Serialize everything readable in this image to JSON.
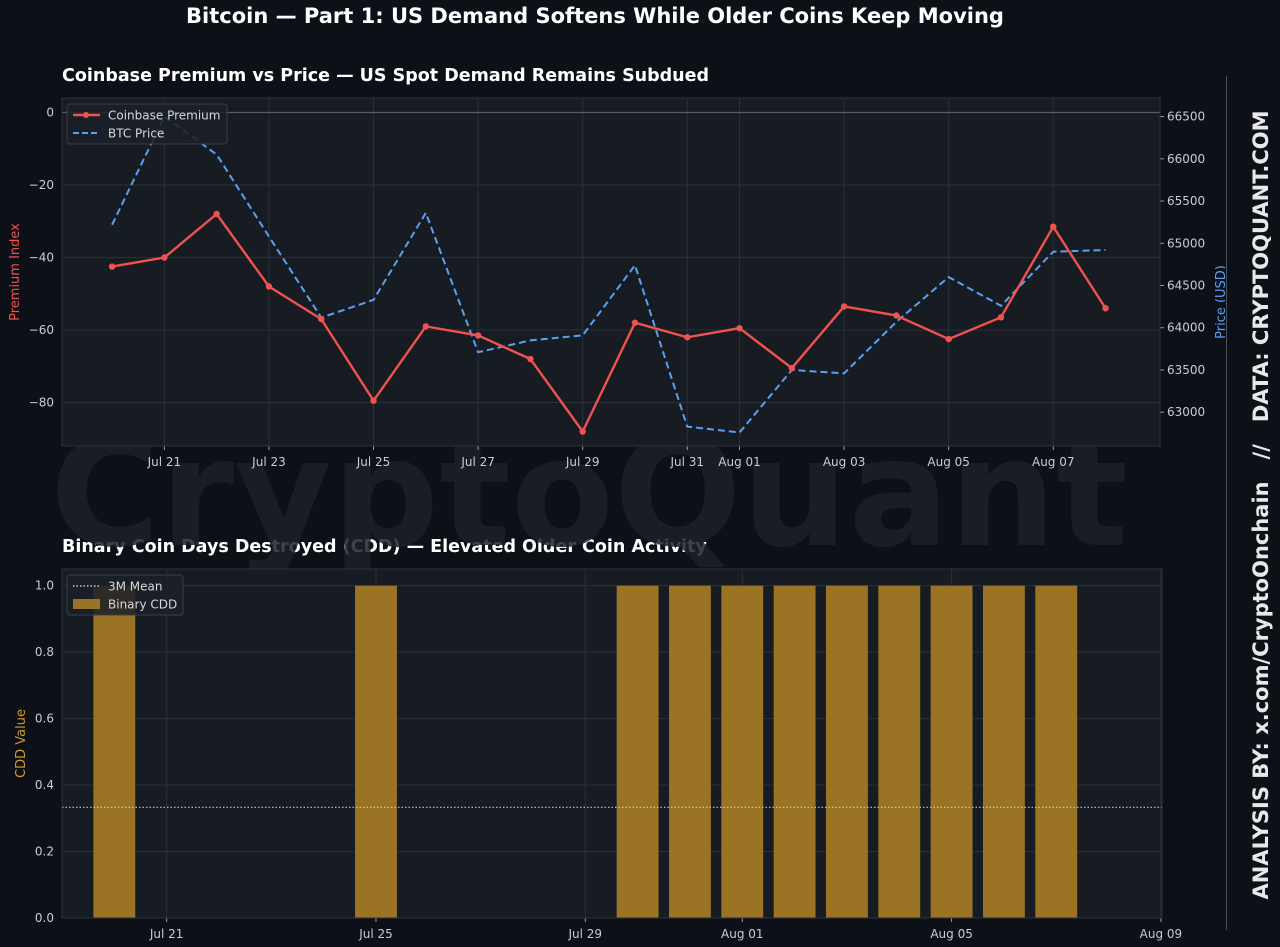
{
  "page": {
    "title": "Bitcoin — Part 1: US Demand Softens While Older Coins Keep Moving",
    "watermark": "CryptoQuant",
    "side_credit": "ANALYSIS BY: x.com/CryptoOnchain   //   DATA: CRYPTOQUANT.COM"
  },
  "colors": {
    "background": "#0d1017",
    "panel": "#171b22",
    "premium": "#f0524f",
    "price": "#5aa0f2",
    "cdd": "#9a7424",
    "mean": "#c8c8c8"
  },
  "chart_data": [
    {
      "type": "line",
      "title": "Coinbase Premium vs Price — US Spot Demand Remains Subdued",
      "x": [
        "2024-07-20",
        "2024-07-21",
        "2024-07-22",
        "2024-07-23",
        "2024-07-24",
        "2024-07-25",
        "2024-07-26",
        "2024-07-27",
        "2024-07-28",
        "2024-07-29",
        "2024-07-30",
        "2024-07-31",
        "2024-08-01",
        "2024-08-02",
        "2024-08-03",
        "2024-08-04",
        "2024-08-05",
        "2024-08-06",
        "2024-08-07",
        "2024-08-08"
      ],
      "x_ticks": [
        "Jul 21",
        "Jul 23",
        "Jul 25",
        "Jul 27",
        "Jul 29",
        "Jul 31",
        "Aug 01",
        "Aug 03",
        "Aug 05",
        "Aug 07"
      ],
      "x_tick_dates": [
        "2024-07-21",
        "2024-07-23",
        "2024-07-25",
        "2024-07-27",
        "2024-07-29",
        "2024-07-31",
        "2024-08-01",
        "2024-08-03",
        "2024-08-05",
        "2024-08-07"
      ],
      "xlim": [
        "2024-07-19T01:00",
        "2024-08-09T01:00"
      ],
      "ylabel": "Premium Index",
      "ylabel_right": "Price (USD)",
      "ylim": [
        -92,
        4
      ],
      "y_ticks": [
        0,
        -20,
        -40,
        -60,
        -80
      ],
      "ylim_right": [
        62600,
        66720
      ],
      "y_ticks_right": [
        66500,
        66000,
        65500,
        65000,
        64500,
        64000,
        63500,
        63000
      ],
      "grid": true,
      "zero_line": true,
      "legend_position": "top-left",
      "series": [
        {
          "name": "Coinbase Premium",
          "axis": "left",
          "style": "solid",
          "markers": true,
          "values": [
            -42.5,
            -40,
            -28,
            -48,
            -57,
            -79.5,
            -59,
            -61.5,
            -68,
            -88,
            -58,
            -62,
            -59.5,
            -70.5,
            -53.5,
            -56,
            -62.5,
            -56.5,
            -31.5,
            -54
          ]
        },
        {
          "name": "BTC Price",
          "axis": "right",
          "style": "dashed",
          "markers": false,
          "values": [
            65220,
            66500,
            66050,
            65080,
            64120,
            64330,
            65360,
            63710,
            63850,
            63910,
            64740,
            62830,
            62760,
            63500,
            63460,
            64070,
            64600,
            64260,
            64900,
            64920
          ]
        }
      ]
    },
    {
      "type": "bar",
      "title": "Binary Coin Days Destroyed (CDD) — Elevated Older Coin Activity",
      "x": [
        "2024-07-20",
        "2024-07-21",
        "2024-07-22",
        "2024-07-23",
        "2024-07-24",
        "2024-07-25",
        "2024-07-26",
        "2024-07-27",
        "2024-07-28",
        "2024-07-29",
        "2024-07-30",
        "2024-07-31",
        "2024-08-01",
        "2024-08-02",
        "2024-08-03",
        "2024-08-04",
        "2024-08-05",
        "2024-08-06",
        "2024-08-07",
        "2024-08-08"
      ],
      "values": [
        1,
        0,
        0,
        0,
        0,
        1,
        0,
        0,
        0,
        0,
        1,
        1,
        1,
        1,
        1,
        1,
        1,
        1,
        1,
        0
      ],
      "x_ticks": [
        "Jul 21",
        "Jul 25",
        "Jul 29",
        "Aug 01",
        "Aug 05",
        "Aug 09"
      ],
      "x_tick_dates": [
        "2024-07-21",
        "2024-07-25",
        "2024-07-29",
        "2024-08-01",
        "2024-08-05",
        "2024-08-09"
      ],
      "xlim": [
        "2024-07-19T00:00",
        "2024-08-09T00:30"
      ],
      "ylabel": "CDD Value",
      "ylim": [
        0,
        1.05
      ],
      "y_ticks": [
        "0.0",
        "0.2",
        "0.4",
        "0.6",
        "0.8",
        "1.0"
      ],
      "mean_line": 0.333,
      "grid": true,
      "legend_position": "top-left",
      "legend": [
        "3M Mean",
        "Binary CDD"
      ]
    }
  ]
}
